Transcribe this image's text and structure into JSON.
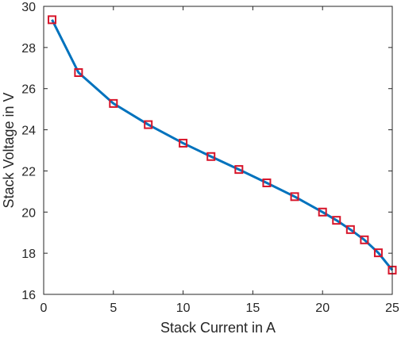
{
  "chart_data": {
    "type": "line",
    "title": "",
    "xlabel": "Stack Current in A",
    "ylabel": "Stack Voltage in V",
    "xlim": [
      0,
      25
    ],
    "ylim": [
      16,
      30
    ],
    "xticks": [
      0,
      5,
      10,
      15,
      20,
      25
    ],
    "yticks": [
      16,
      18,
      20,
      22,
      24,
      26,
      28,
      30
    ],
    "grid": false,
    "legend": "none",
    "series": [
      {
        "x": [
          0.6,
          2.5,
          5,
          7.5,
          10,
          12,
          14,
          16,
          18,
          20,
          21,
          22,
          23,
          24,
          25
        ],
        "y": [
          29.35,
          26.78,
          25.28,
          24.25,
          23.35,
          22.7,
          22.07,
          21.42,
          20.75,
          20.0,
          19.6,
          19.15,
          18.65,
          18.02,
          17.18
        ],
        "line_color": "#0072BD",
        "marker": "square",
        "marker_color": "#D7152A"
      }
    ],
    "colors": {
      "axis": "#262626",
      "line": "#0072BD",
      "marker": "#D7152A"
    }
  }
}
